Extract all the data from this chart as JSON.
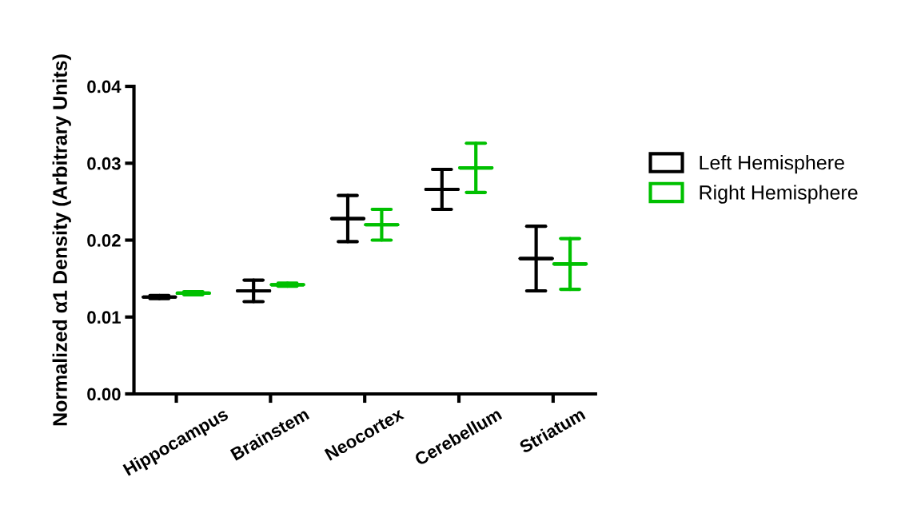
{
  "chart_data": {
    "type": "box",
    "ylabel": "Normalized α1 Density (Arbitrary Units)",
    "categories": [
      "Hippocampus",
      "Brainstem",
      "Neocortex",
      "Cerebellum",
      "Striatum"
    ],
    "series": [
      {
        "name": "Left Hemisphere",
        "color": "#000000",
        "boxes": [
          {
            "low": 0.0124,
            "q1": 0.0126,
            "median": 0.0126,
            "q3": 0.0126,
            "high": 0.0128
          },
          {
            "low": 0.012,
            "q1": 0.0134,
            "median": 0.0134,
            "q3": 0.0134,
            "high": 0.0148
          },
          {
            "low": 0.0198,
            "q1": 0.0228,
            "median": 0.0228,
            "q3": 0.0228,
            "high": 0.0258
          },
          {
            "low": 0.024,
            "q1": 0.0266,
            "median": 0.0266,
            "q3": 0.0266,
            "high": 0.0292
          },
          {
            "low": 0.0134,
            "q1": 0.0176,
            "median": 0.0176,
            "q3": 0.0176,
            "high": 0.0218
          }
        ]
      },
      {
        "name": "Right Hemisphere",
        "color": "#00c000",
        "boxes": [
          {
            "low": 0.0129,
            "q1": 0.0131,
            "median": 0.0131,
            "q3": 0.0131,
            "high": 0.0133
          },
          {
            "low": 0.014,
            "q1": 0.0142,
            "median": 0.0142,
            "q3": 0.0142,
            "high": 0.0144
          },
          {
            "low": 0.02,
            "q1": 0.022,
            "median": 0.022,
            "q3": 0.022,
            "high": 0.024
          },
          {
            "low": 0.0262,
            "q1": 0.0294,
            "median": 0.0294,
            "q3": 0.0294,
            "high": 0.0326
          },
          {
            "low": 0.0136,
            "q1": 0.0169,
            "median": 0.0169,
            "q3": 0.0169,
            "high": 0.0202
          }
        ]
      }
    ],
    "ylim": [
      0,
      0.04
    ],
    "yticks": [
      {
        "value": 0,
        "label": "0.00"
      },
      0.01,
      0.02,
      0.03,
      0.04
    ],
    "grid": false,
    "legend": "right"
  }
}
